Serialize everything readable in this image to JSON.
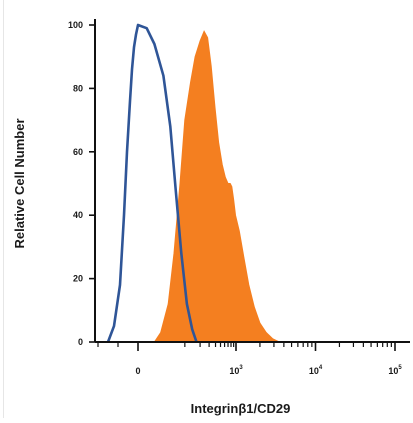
{
  "chart_data": {
    "type": "area",
    "title": "",
    "xlabel": "Integrinβ1/CD29",
    "ylabel": "Relative Cell Number",
    "xscale": "biexponential",
    "xlim": [
      -300,
      100000
    ],
    "ylim": [
      0,
      100
    ],
    "grid": false,
    "legend": "none",
    "yticks": [
      {
        "value": 0,
        "label": "0"
      },
      {
        "value": 20,
        "label": "20"
      },
      {
        "value": 40,
        "label": "40"
      },
      {
        "value": 60,
        "label": "60"
      },
      {
        "value": 80,
        "label": "80"
      },
      {
        "value": 100,
        "label": "100"
      }
    ],
    "xticks": [
      {
        "value": 0,
        "base": "0",
        "exp": ""
      },
      {
        "value": 1000,
        "base": "10",
        "exp": "3"
      },
      {
        "value": 10000,
        "base": "10",
        "exp": "4"
      },
      {
        "value": 100000,
        "base": "10",
        "exp": "5"
      }
    ],
    "series": [
      {
        "style": "filled",
        "color": "#f47f20",
        "x": [
          20,
          30,
          45,
          60,
          80,
          100,
          130,
          160,
          200,
          240,
          280,
          330,
          390,
          460,
          540,
          620,
          700,
          770,
          830,
          900,
          980,
          1100,
          1250,
          1450,
          1700,
          2000,
          2400,
          2900,
          3500
        ],
        "y": [
          0,
          3,
          12,
          28,
          50,
          70,
          82,
          90,
          95,
          98,
          96,
          87,
          74,
          63,
          56,
          52,
          50,
          50,
          49,
          45,
          40,
          35,
          27,
          18,
          11,
          6,
          3,
          1,
          0
        ]
      },
      {
        "style": "outline",
        "color": "#2f5597",
        "x": [
          -150,
          -120,
          -90,
          -70,
          -55,
          -40,
          -30,
          -20,
          -10,
          0,
          10,
          20,
          35,
          50,
          65,
          85,
          110,
          140,
          170
        ],
        "y": [
          0,
          5,
          18,
          40,
          60,
          76,
          86,
          93,
          97,
          100,
          99,
          94,
          84,
          68,
          48,
          28,
          12,
          4,
          0
        ]
      }
    ]
  }
}
